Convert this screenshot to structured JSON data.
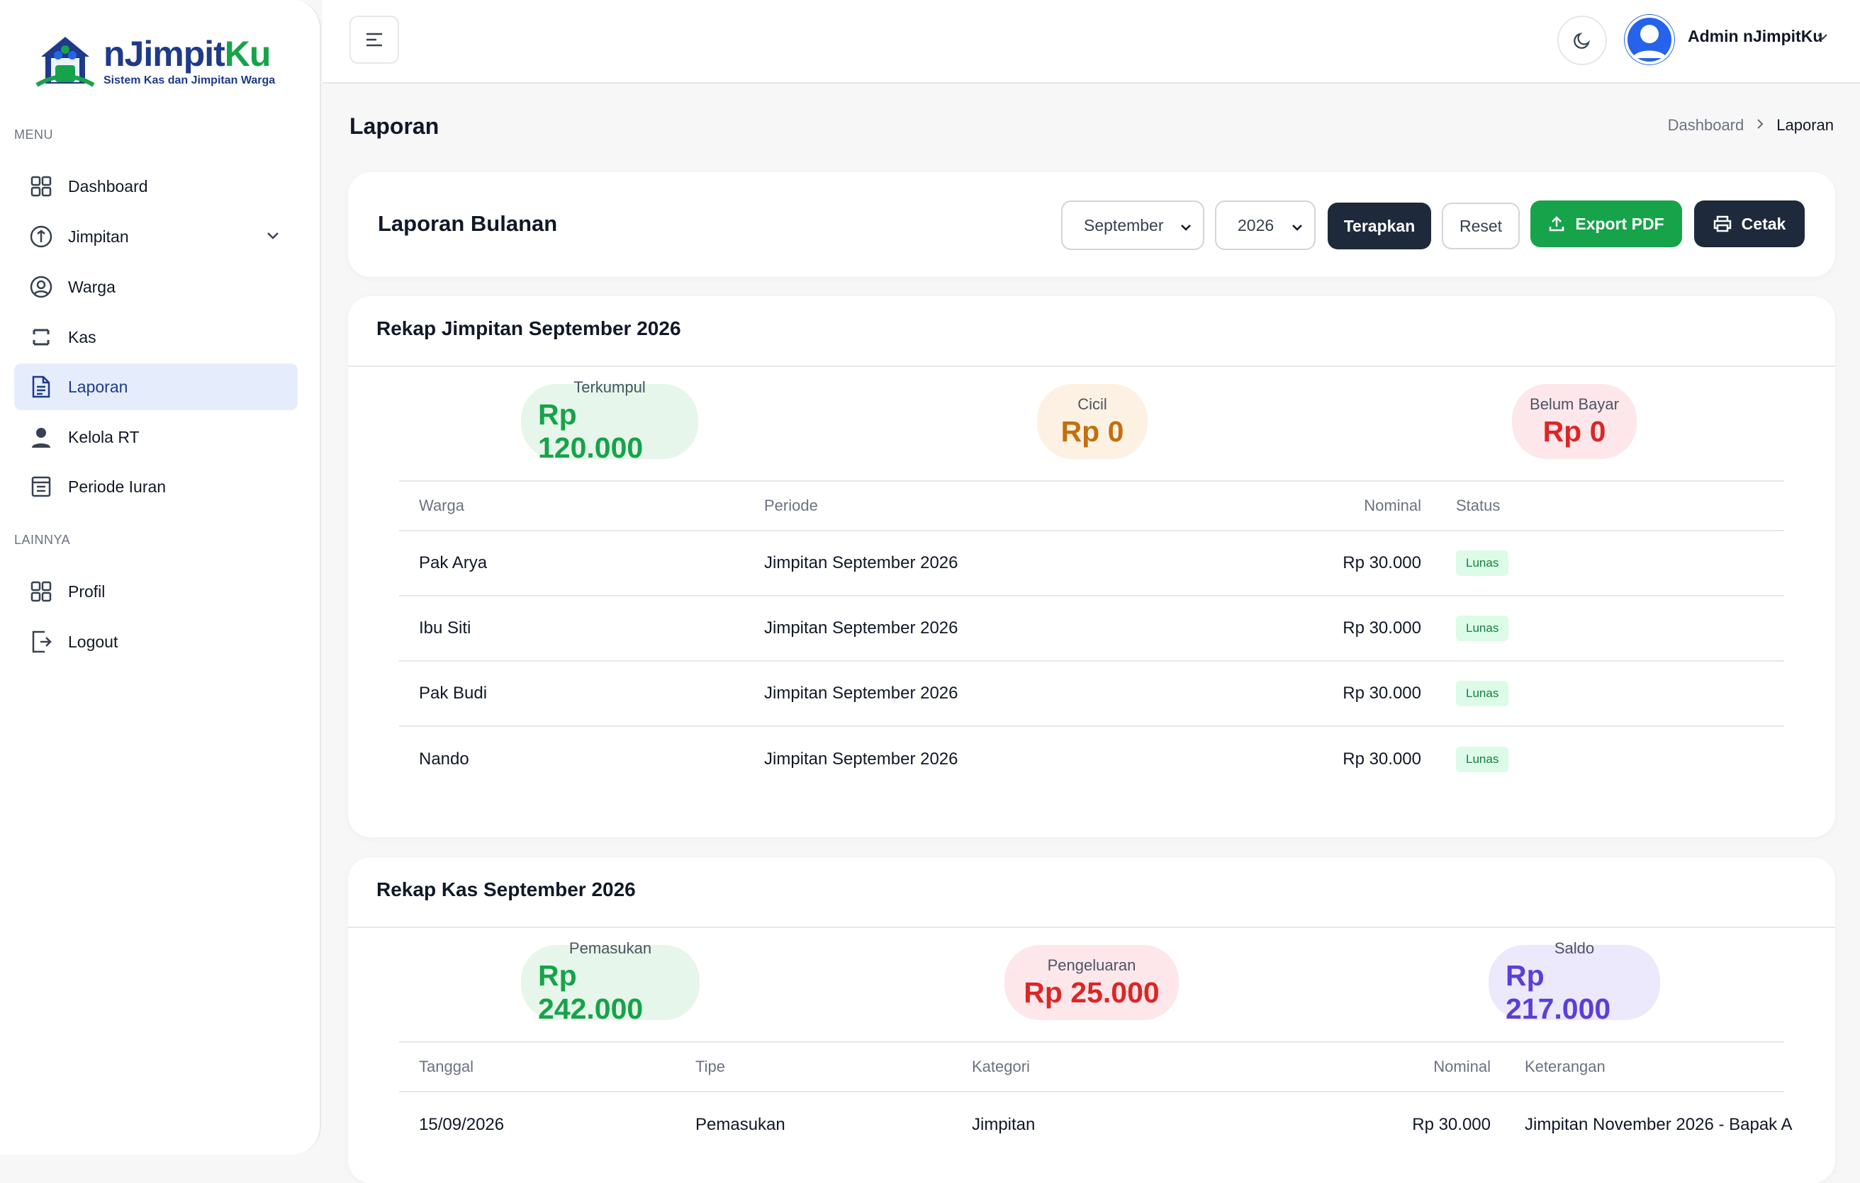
{
  "brand": {
    "name_part1": "nJimpit",
    "name_part2": "Ku",
    "tagline": "Sistem Kas dan Jimpitan Warga"
  },
  "sidebar": {
    "menu_heading": "MENU",
    "other_heading": "LAINNYA",
    "items": [
      {
        "label": "Dashboard",
        "icon": "grid-icon"
      },
      {
        "label": "Jimpitan",
        "icon": "coin-icon"
      },
      {
        "label": "Warga",
        "icon": "user-circle-icon"
      },
      {
        "label": "Kas",
        "icon": "wallet-icon"
      },
      {
        "label": "Laporan",
        "icon": "document-icon",
        "active": true
      },
      {
        "label": "Kelola RT",
        "icon": "person-icon"
      },
      {
        "label": "Periode Iuran",
        "icon": "calendar-list-icon"
      }
    ],
    "other_items": [
      {
        "label": "Profil",
        "icon": "grid-icon"
      },
      {
        "label": "Logout",
        "icon": "logout-icon"
      }
    ]
  },
  "topbar": {
    "user_name": "Admin nJimpitKu"
  },
  "page": {
    "title": "Laporan",
    "breadcrumb_home": "Dashboard",
    "breadcrumb_current": "Laporan"
  },
  "filter": {
    "title": "Laporan Bulanan",
    "month": "September",
    "year": "2026",
    "apply_label": "Terapkan",
    "reset_label": "Reset",
    "export_label": "Export PDF",
    "print_label": "Cetak"
  },
  "jimpitan": {
    "title": "Rekap Jimpitan September 2026",
    "summary": [
      {
        "label": "Terkumpul",
        "value": "Rp 120.000"
      },
      {
        "label": "Cicil",
        "value": "Rp 0"
      },
      {
        "label": "Belum Bayar",
        "value": "Rp 0"
      }
    ],
    "columns": [
      "Warga",
      "Periode",
      "Nominal",
      "Status"
    ],
    "rows": [
      {
        "warga": "Pak Arya",
        "periode": "Jimpitan September 2026",
        "nominal": "Rp 30.000",
        "status": "Lunas"
      },
      {
        "warga": "Ibu Siti",
        "periode": "Jimpitan September 2026",
        "nominal": "Rp 30.000",
        "status": "Lunas"
      },
      {
        "warga": "Pak Budi",
        "periode": "Jimpitan September 2026",
        "nominal": "Rp 30.000",
        "status": "Lunas"
      },
      {
        "warga": "Nando",
        "periode": "Jimpitan September 2026",
        "nominal": "Rp 30.000",
        "status": "Lunas"
      }
    ]
  },
  "kas": {
    "title": "Rekap Kas September 2026",
    "summary": [
      {
        "label": "Pemasukan",
        "value": "Rp 242.000"
      },
      {
        "label": "Pengeluaran",
        "value": "Rp 25.000"
      },
      {
        "label": "Saldo",
        "value": "Rp 217.000"
      }
    ],
    "columns": [
      "Tanggal",
      "Tipe",
      "Kategori",
      "Nominal",
      "Keterangan"
    ],
    "rows": [
      {
        "tanggal": "15/09/2026",
        "tipe": "Pemasukan",
        "kategori": "Jimpitan",
        "nominal": "Rp 30.000",
        "keterangan": "Jimpitan November 2026 - Bapak A"
      }
    ]
  }
}
